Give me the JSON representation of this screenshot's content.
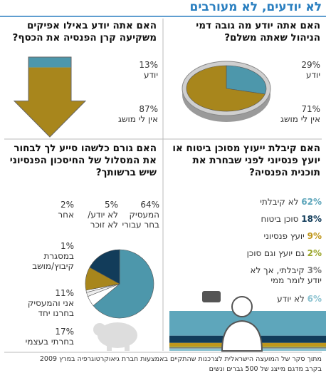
{
  "header": {
    "title": "לא יודעים, לא מעורבים"
  },
  "chart_data": [
    {
      "type": "pie",
      "title": "האם אתה יודע מה גובה דמי הניהול שאתה משלם?",
      "categories": [
        "יודע",
        "אין לי מושג"
      ],
      "values": [
        29,
        71
      ],
      "value_labels": [
        "29%",
        "71%"
      ],
      "colors": [
        "#4d97ab",
        "#a8861c"
      ]
    },
    {
      "type": "stacked-fill",
      "title": "האם אתה יודע באילו אפיקים משקיעה קרן הפנסיה את הכסף?",
      "categories": [
        "יודע",
        "אין לי מושג"
      ],
      "values": [
        13,
        87
      ],
      "value_labels": [
        "13%",
        "87%"
      ],
      "colors": [
        "#4d97ab",
        "#a8861c"
      ]
    },
    {
      "type": "pie",
      "title": "האם גורם כלשהו סייע לך לבחור את המסלול של החיסכון הפנסיוני שיש ברשותך?",
      "categories": [
        "המעסיק בחר עבורי",
        "לא יודע/ לא זוכר",
        "אחר",
        "במסגרת קיבוץ/מושב",
        "אני והמעסיק בחרנו יחד",
        "בחרתי בעצמי"
      ],
      "values": [
        64,
        5,
        2,
        1,
        11,
        17
      ],
      "value_labels": [
        "64%",
        "5%",
        "2%",
        "1%",
        "11%",
        "17%"
      ],
      "colors": [
        "#4d97ab",
        "#ffffff",
        "#eeeeee",
        "#ffffff",
        "#a8861c",
        "#123c5a"
      ]
    },
    {
      "type": "stacked-bar",
      "title": "האם קיבלת ייעוץ מסוכן ביטוח או יועץ פנסיוני לפני שבחרת את תוכנית הפנסיה?",
      "categories": [
        "לא קיבלתי",
        "סוכן ביטוח",
        "יועץ פנסיוני",
        "גם יועץ וגם סוכן",
        "קיבלתי, אך לא יודע לומר ממי",
        "לא יודע"
      ],
      "values": [
        62,
        18,
        9,
        2,
        3,
        6
      ],
      "value_labels": [
        "62%",
        "18%",
        "9%",
        "2%",
        "3%",
        "6%"
      ],
      "colors": [
        "#5ea6bb",
        "#123c5a",
        "#c0971c",
        "#9aa52a",
        "#7d7d7d",
        "#8cc3d1"
      ]
    }
  ],
  "footer": {
    "lines": [
      "מתוך סקר של המועצה הישראלית לצרכנות שהתקיים באמצעות חברת גיאוקרטוגרפיה במרץ 2009",
      "בקרב מדגם מייצג של 500 גברים ונשים"
    ]
  }
}
